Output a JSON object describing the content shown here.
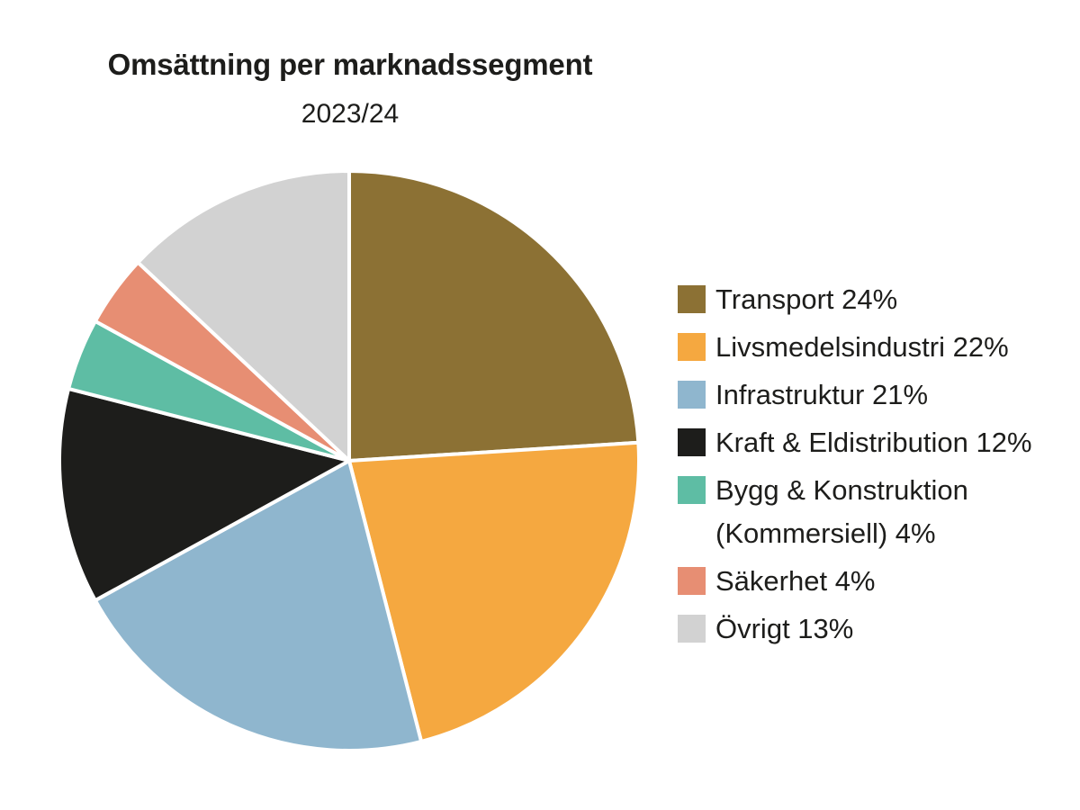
{
  "header": {
    "title": "Omsättning per marknadssegment",
    "subtitle": "2023/24"
  },
  "chart_data": {
    "type": "pie",
    "title": "Omsättning per marknadssegment",
    "subtitle": "2023/24",
    "unit": "%",
    "start_angle_deg": 0,
    "direction": "clockwise",
    "legend_position": "right",
    "slice_border_color": "#FFFFFF",
    "slices": [
      {
        "label": "Transport",
        "value": 24,
        "color": "#8C7134"
      },
      {
        "label": "Livsmedelsindustri",
        "value": 22,
        "color": "#F5A840"
      },
      {
        "label": "Infrastruktur",
        "value": 21,
        "color": "#8FB6CE"
      },
      {
        "label": "Kraft & Eldistribution",
        "value": 12,
        "color": "#1D1D1B"
      },
      {
        "label": "Bygg & Konstruktion (Kommersiell)",
        "value": 4,
        "color": "#5EBDA4"
      },
      {
        "label": "Säkerhet",
        "value": 4,
        "color": "#E78E73"
      },
      {
        "label": "Övrigt",
        "value": 13,
        "color": "#D2D2D2"
      }
    ]
  },
  "colors": {
    "text": "#1D1D1B",
    "background": "#FFFFFF"
  }
}
